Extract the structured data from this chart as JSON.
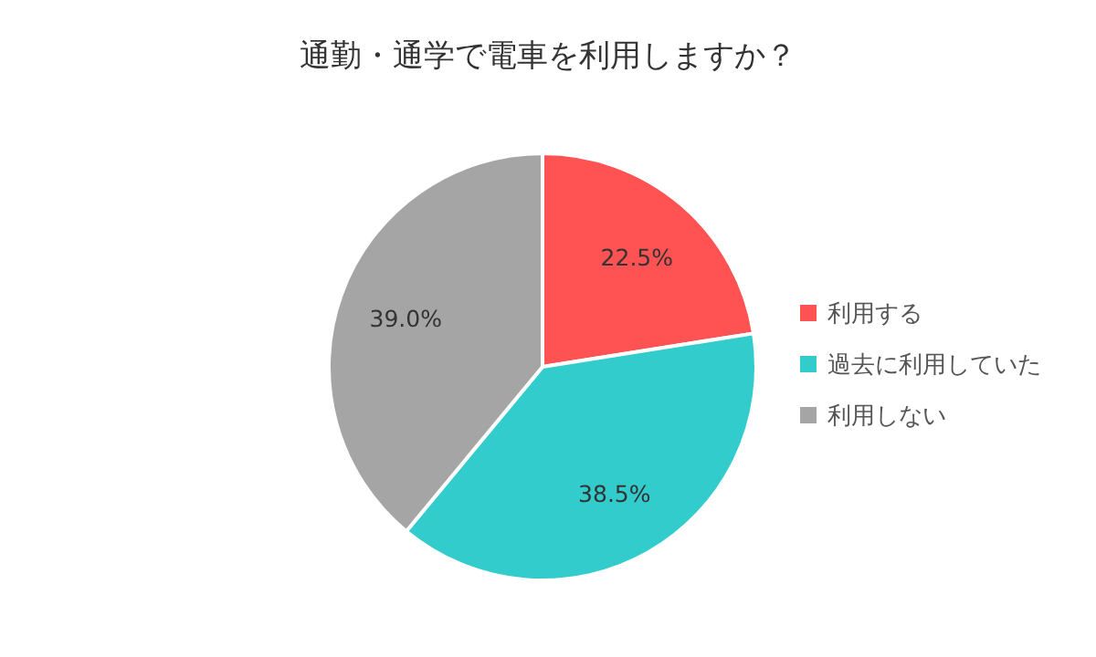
{
  "chart_data": {
    "type": "pie",
    "title": "通勤・通学で電車を利用しますか？",
    "categories": [
      "利用する",
      "過去に利用していた",
      "利用しない"
    ],
    "values": [
      22.5,
      38.5,
      39.0
    ],
    "value_labels": [
      "22.5%",
      "38.5%",
      "39.0%"
    ],
    "colors": [
      "#ff5252",
      "#33cccc",
      "#a5a5a5"
    ],
    "legend": "right"
  }
}
